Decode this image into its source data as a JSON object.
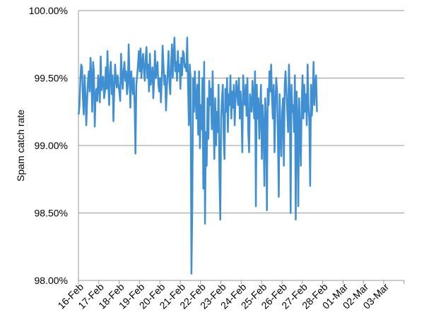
{
  "chart_data": {
    "type": "line",
    "title": "",
    "xlabel": "",
    "ylabel": "Spam catch rate",
    "ylim": [
      98.0,
      100.0
    ],
    "y_ticks": [
      "98.00%",
      "98.50%",
      "99.00%",
      "99.50%",
      "100.00%"
    ],
    "x_ticks": [
      "16-Feb",
      "17-Feb",
      "18-Feb",
      "19-Feb",
      "20-Feb",
      "21-Feb",
      "22-Feb",
      "23-Feb",
      "24-Feb",
      "25-Feb",
      "26-Feb",
      "27-Feb",
      "28-Feb",
      "01-Mar",
      "02-Mar",
      "03-Mar"
    ],
    "grid": "horizontal",
    "legend": "none",
    "series": [
      {
        "color": "#3F8FD2",
        "x_start": "16-Feb",
        "points_per_day": 24,
        "values": [
          99.23,
          99.3,
          99.48,
          99.6,
          99.58,
          99.35,
          99.23,
          99.52,
          99.38,
          99.15,
          99.33,
          99.48,
          99.55,
          99.4,
          99.65,
          99.5,
          99.25,
          99.62,
          99.55,
          99.14,
          99.38,
          99.42,
          99.33,
          99.52,
          99.45,
          99.32,
          99.66,
          99.41,
          99.47,
          99.51,
          99.35,
          99.4,
          99.58,
          99.42,
          99.7,
          99.45,
          99.3,
          99.56,
          99.62,
          99.38,
          99.52,
          99.18,
          99.41,
          99.6,
          99.48,
          99.43,
          99.52,
          99.45,
          99.4,
          99.33,
          99.68,
          99.5,
          99.42,
          99.56,
          99.62,
          99.48,
          99.55,
          99.38,
          99.45,
          99.75,
          99.5,
          99.28,
          99.55,
          99.46,
          99.38,
          99.5,
          99.3,
          98.94,
          99.45,
          99.52,
          99.6,
          99.7,
          99.55,
          99.72,
          99.5,
          99.62,
          99.68,
          99.55,
          99.48,
          99.65,
          99.73,
          99.5,
          99.6,
          99.4,
          99.68,
          99.45,
          99.52,
          99.58,
          99.35,
          99.48,
          99.7,
          99.5,
          99.55,
          99.62,
          99.45,
          99.4,
          99.5,
          99.32,
          99.48,
          99.74,
          99.6,
          99.45,
          99.52,
          99.26,
          99.42,
          99.55,
          99.7,
          99.48,
          99.38,
          99.6,
          99.75,
          99.5,
          99.68,
          99.8,
          99.55,
          99.62,
          99.48,
          99.7,
          99.55,
          99.6,
          99.42,
          99.65,
          99.52,
          99.7,
          99.68,
          99.58,
          99.6,
          99.55,
          99.8,
          99.45,
          99.15,
          99.6,
          99.5,
          98.05,
          98.55,
          99.5,
          99.25,
          99.55,
          99.35,
          99.2,
          99.45,
          99.08,
          99.55,
          98.98,
          99.3,
          99.12,
          99.5,
          98.68,
          99.62,
          98.42,
          99.1,
          98.85,
          99.35,
          99.05,
          99.48,
          99.3,
          99.42,
          99.12,
          99.55,
          99.2,
          98.9,
          99.35,
          99.0,
          99.25,
          99.1,
          99.45,
          98.8,
          98.45,
          99.2,
          99.35,
          99.45,
          99.05,
          98.9,
          99.42,
          99.25,
          99.5,
          99.1,
          99.38,
          99.3,
          99.52,
          99.2,
          99.4,
          99.28,
          99.45,
          99.15,
          99.35,
          99.48,
          99.38,
          99.3,
          99.5,
          99.2,
          99.4,
          99.25,
          98.95,
          99.52,
          99.35,
          99.3,
          99.45,
          99.22,
          99.5,
          99.1,
          98.95,
          99.38,
          99.3,
          99.25,
          99.48,
          99.35,
          99.2,
          99.55,
          98.55,
          99.45,
          99.2,
          99.35,
          99.05,
          99.25,
          99.45,
          98.9,
          99.3,
          99.15,
          98.7,
          99.35,
          99.2,
          98.52,
          99.42,
          99.3,
          99.55,
          99.4,
          99.6,
          99.35,
          99.2,
          99.45,
          98.95,
          99.3,
          99.5,
          99.4,
          99.05,
          98.62,
          99.38,
          99.1,
          98.92,
          99.25,
          99.35,
          98.85,
          99.45,
          99.55,
          99.4,
          99.25,
          99.1,
          99.6,
          99.35,
          98.5,
          99.45,
          99.25,
          99.3,
          99.1,
          99.52,
          98.45,
          99.4,
          99.2,
          98.55,
          99.35,
          99.1,
          98.85,
          99.3,
          99.52,
          99.2,
          99.45,
          99.25,
          99.38,
          99.15,
          99.6,
          99.3,
          99.18,
          98.7,
          99.45,
          99.22,
          99.35,
          99.62,
          99.3,
          99.45,
          99.52,
          99.25
        ]
      }
    ]
  }
}
